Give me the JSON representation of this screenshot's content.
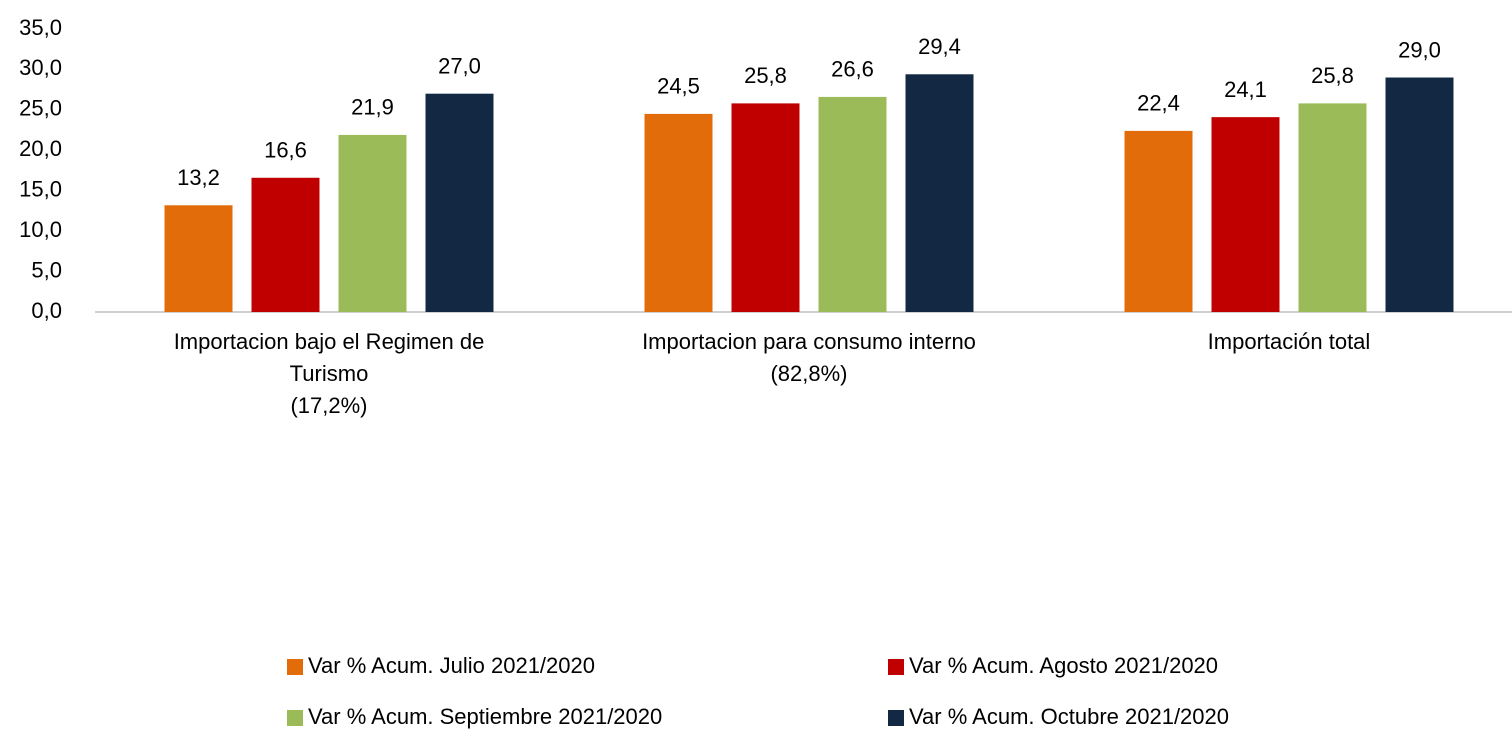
{
  "chart_data": {
    "type": "bar",
    "categories": [
      "Importacion bajo el Regimen de\nTurismo\n(17,2%)",
      "Importacion para consumo interno\n(82,8%)",
      "Importación total"
    ],
    "series": [
      {
        "name": "Var % Acum. Julio 2021/2020",
        "color": "#e36c0a",
        "values": [
          13.2,
          24.5,
          22.4
        ],
        "value_labels": [
          "13,2",
          "24,5",
          "22,4"
        ]
      },
      {
        "name": "Var % Acum. Agosto 2021/2020",
        "color": "#c00000",
        "values": [
          16.6,
          25.8,
          24.1
        ],
        "value_labels": [
          "16,6",
          "25,8",
          "24,1"
        ]
      },
      {
        "name": "Var % Acum. Septiembre 2021/2020",
        "color": "#9bbb59",
        "values": [
          21.9,
          26.6,
          25.8
        ],
        "value_labels": [
          "21,9",
          "26,6",
          "25,8"
        ]
      },
      {
        "name": "Var % Acum. Octubre 2021/2020",
        "color": "#132843",
        "values": [
          27.0,
          29.4,
          29.0
        ],
        "value_labels": [
          "27,0",
          "29,4",
          "29,0"
        ]
      }
    ],
    "ylim": [
      0,
      35
    ],
    "yticks": [
      {
        "value": 0,
        "label": "0,0"
      },
      {
        "value": 5,
        "label": "5,0"
      },
      {
        "value": 10,
        "label": "10,0"
      },
      {
        "value": 15,
        "label": "15,0"
      },
      {
        "value": 20,
        "label": "20,0"
      },
      {
        "value": 25,
        "label": "25,0"
      },
      {
        "value": 30,
        "label": "30,0"
      },
      {
        "value": 35,
        "label": "35,0"
      }
    ],
    "grid": false,
    "legend": "bottom"
  }
}
